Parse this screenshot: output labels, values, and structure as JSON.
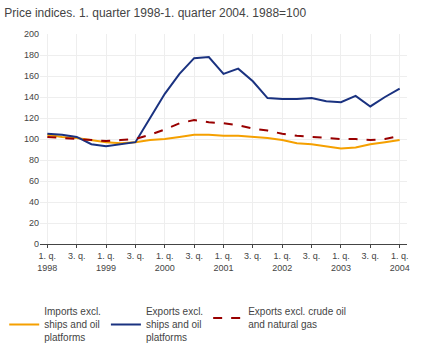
{
  "chart_data": {
    "type": "line",
    "title": "Price indices. 1. quarter 1998-1. quarter 2004. 1988=100",
    "categories": [
      "1. q.\n1998",
      null,
      "3. q.",
      null,
      "1. q.\n1999",
      null,
      "3. q.",
      null,
      "1. q.\n2000",
      null,
      "3. q.",
      null,
      "1. q.\n2001",
      null,
      "3. q.",
      null,
      "1. q.\n2002",
      null,
      "3. q.",
      null,
      "1. q.\n2003",
      null,
      "3. q.",
      null,
      "1. q.\n2004"
    ],
    "series": [
      {
        "name": "Imports excl.\nships and oil\nplatforms",
        "color": "#F5A000",
        "line_style": "solid",
        "values": [
          104,
          102,
          101,
          99,
          97,
          96,
          97,
          99,
          100,
          102,
          104,
          104,
          103,
          103,
          102,
          101,
          99,
          96,
          95,
          93,
          91,
          92,
          95,
          97,
          99
        ]
      },
      {
        "name": "Exports excl.\nships and oil\nplatforms",
        "color": "#1A3280",
        "line_style": "solid",
        "values": [
          105,
          104,
          102,
          95,
          93,
          95,
          97,
          120,
          143,
          162,
          177,
          178,
          162,
          167,
          155,
          139,
          138,
          138,
          139,
          136,
          135,
          141,
          131,
          140,
          148
        ]
      },
      {
        "name": "Exports excl. crude oil\nand natural gas",
        "color": "#990000",
        "line_style": "dashed",
        "values": [
          102,
          101,
          100,
          99,
          98,
          99,
          100,
          104,
          109,
          115,
          118,
          116,
          115,
          113,
          110,
          108,
          105,
          103,
          102,
          101,
          100,
          100,
          99,
          100,
          103
        ]
      }
    ],
    "ylim": [
      0,
      200
    ],
    "yticks": [
      0,
      20,
      40,
      60,
      80,
      100,
      120,
      140,
      160,
      180,
      200
    ],
    "grid": true,
    "legend": "lower left"
  }
}
